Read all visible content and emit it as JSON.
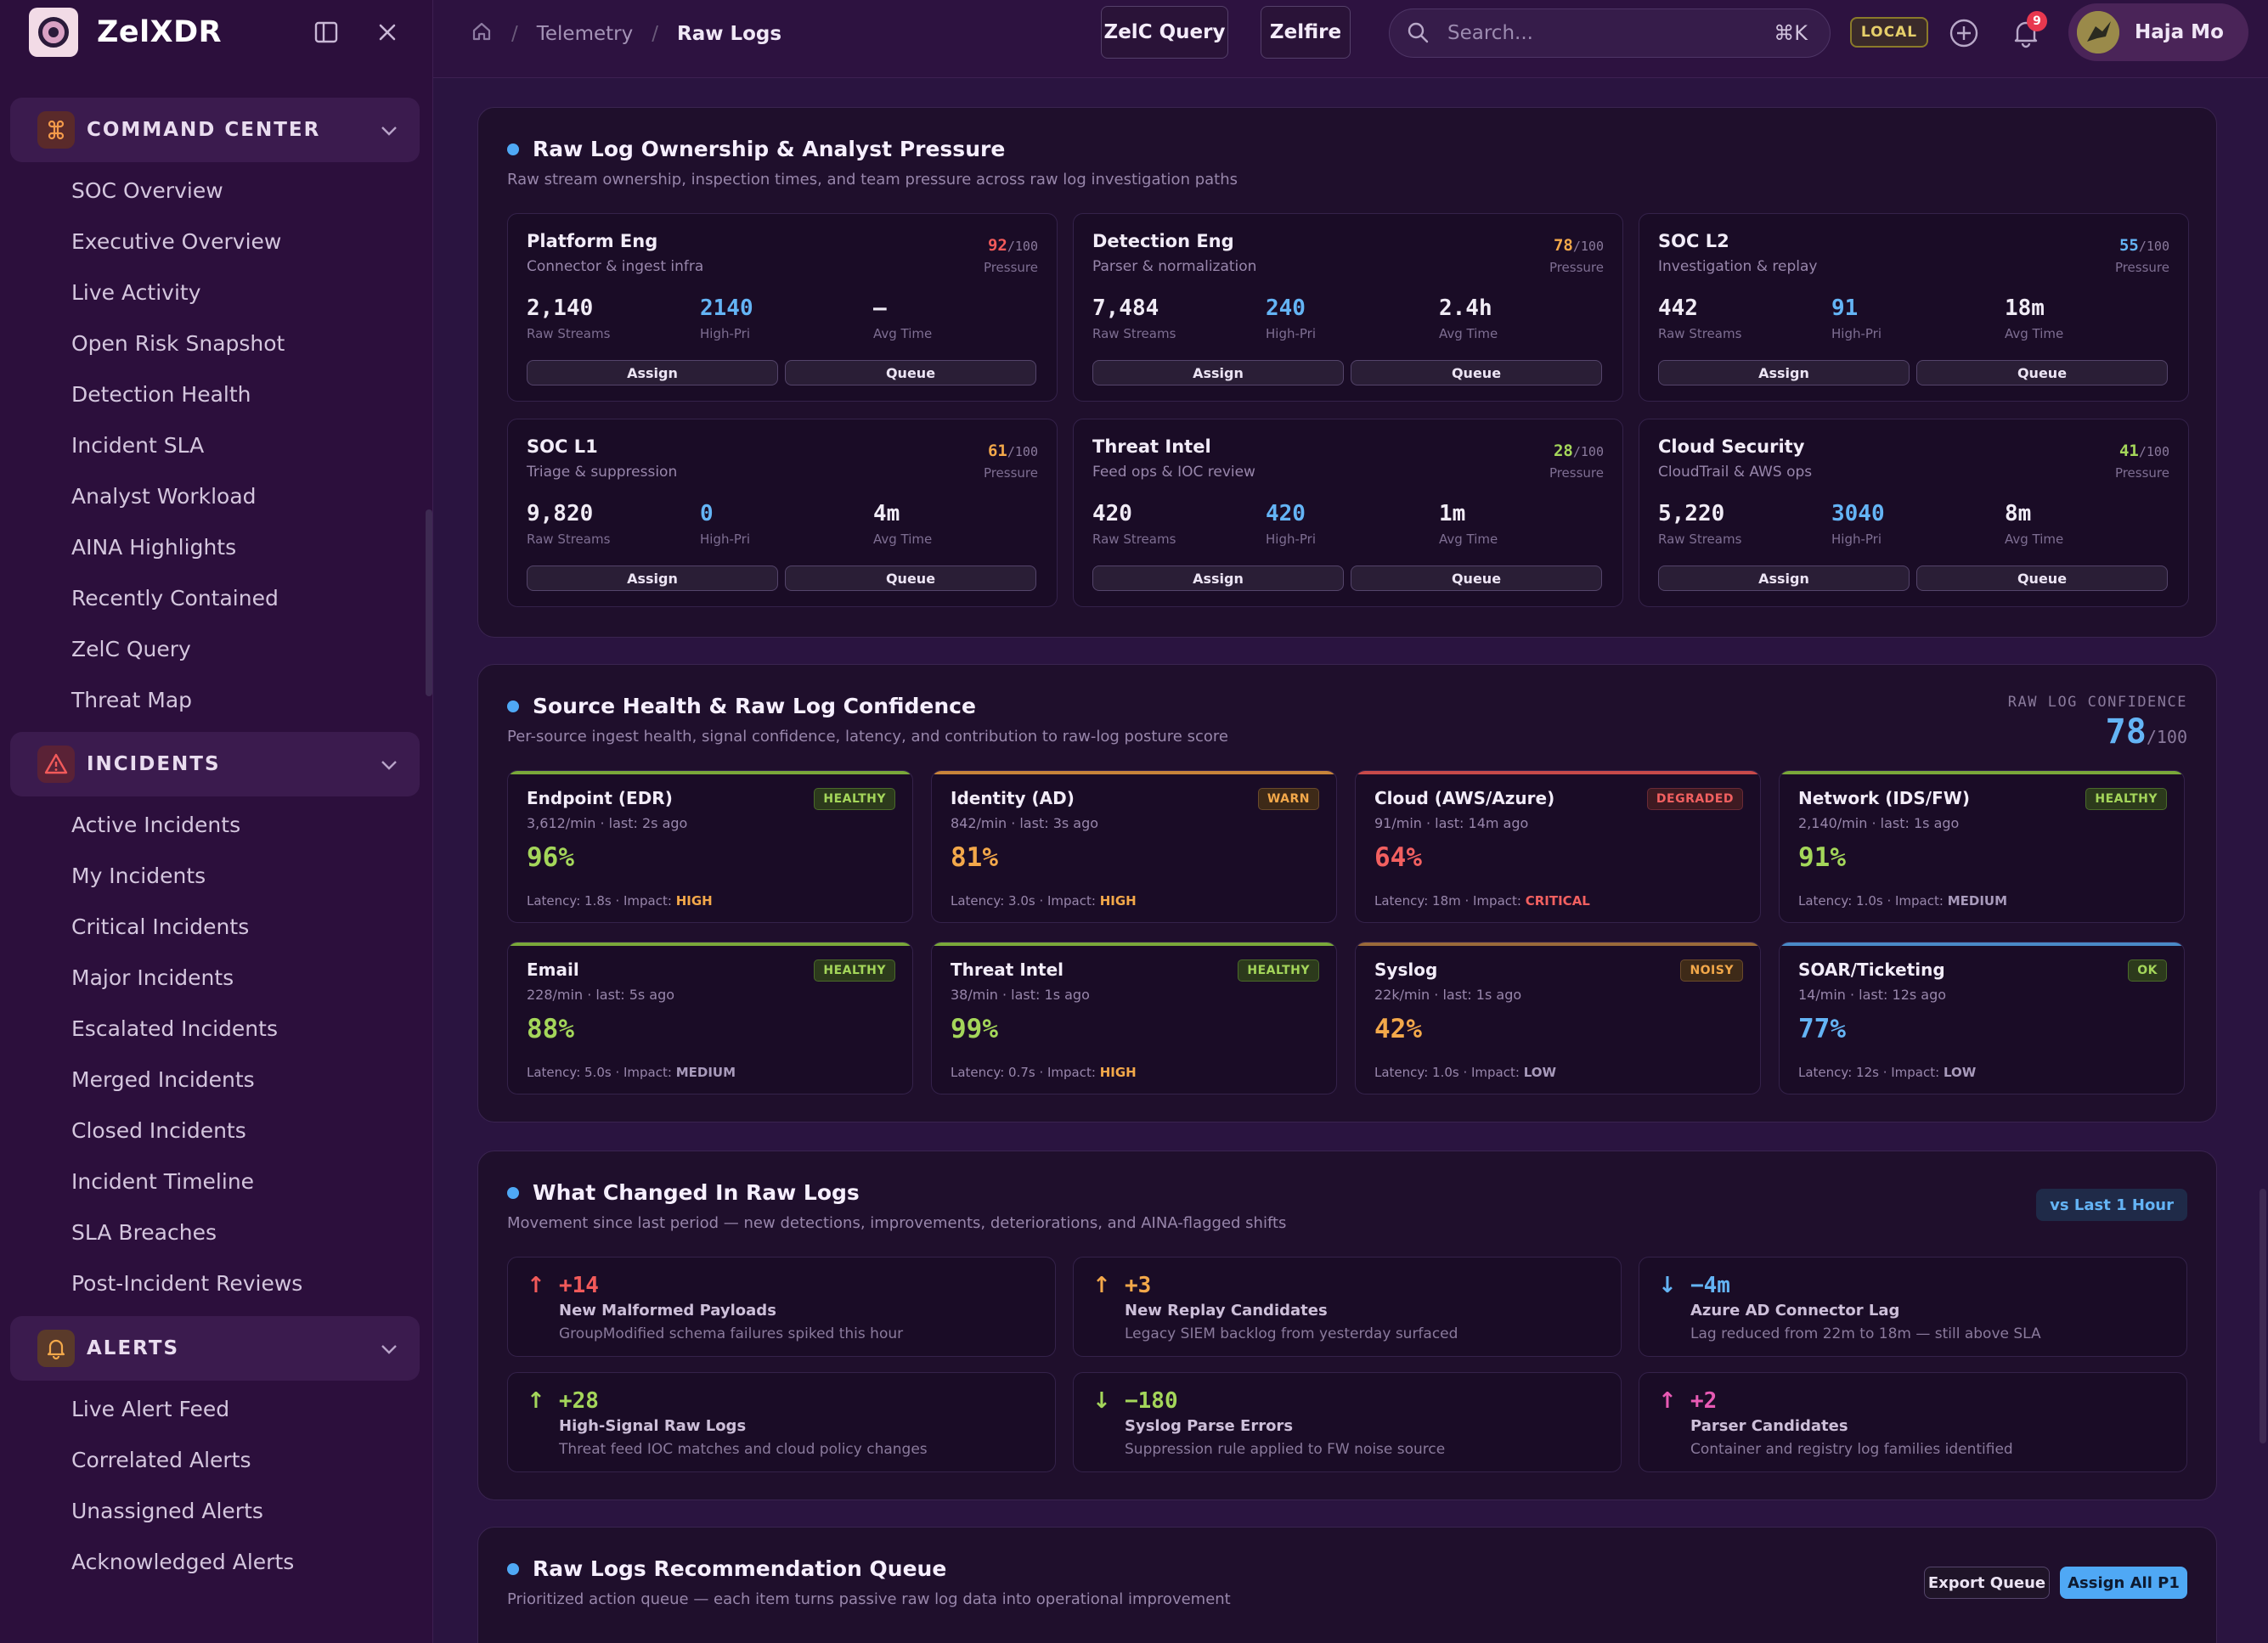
{
  "app": {
    "name": "ZelXDR"
  },
  "sidebar": {
    "groups": [
      {
        "label": "COMMAND CENTER",
        "items": [
          "SOC Overview",
          "Executive Overview",
          "Live Activity",
          "Open Risk Snapshot",
          "Detection Health",
          "Incident SLA",
          "Analyst Workload",
          "AINA Highlights",
          "Recently Contained",
          "ZelC Query",
          "Threat Map"
        ]
      },
      {
        "label": "INCIDENTS",
        "items": [
          "Active Incidents",
          "My Incidents",
          "Critical Incidents",
          "Major Incidents",
          "Escalated Incidents",
          "Merged Incidents",
          "Closed Incidents",
          "Incident Timeline",
          "SLA Breaches",
          "Post-Incident Reviews"
        ]
      },
      {
        "label": "ALERTS",
        "items": [
          "Live Alert Feed",
          "Correlated Alerts",
          "Unassigned Alerts",
          "Acknowledged Alerts"
        ]
      }
    ]
  },
  "header": {
    "breadcrumb": [
      "Telemetry",
      "Raw Logs"
    ],
    "btn_query": "ZelC Query",
    "btn_zelfire": "Zelfire",
    "search_placeholder": "Search...",
    "shortcut": "⌘K",
    "env": "LOCAL",
    "notif_count": "9",
    "user": "Haja Mo"
  },
  "ownership": {
    "title": "Raw Log Ownership & Analyst Pressure",
    "subtitle": "Raw stream ownership, inspection times, and team pressure across raw log investigation paths",
    "pressure_label": "Pressure",
    "denominator": "/100",
    "labels": {
      "streams": "Raw Streams",
      "highpri": "High-Pri",
      "avg": "Avg Time",
      "assign": "Assign",
      "queue": "Queue"
    },
    "teams": [
      {
        "name": "Platform Eng",
        "desc": "Connector & ingest infra",
        "pressure": "92",
        "color": "#f25a5a",
        "streams": "2,140",
        "highpri": "2140",
        "avg": "—"
      },
      {
        "name": "Detection Eng",
        "desc": "Parser & normalization",
        "pressure": "78",
        "color": "#f3a84a",
        "streams": "7,484",
        "highpri": "240",
        "avg": "2.4h"
      },
      {
        "name": "SOC L2",
        "desc": "Investigation & replay",
        "pressure": "55",
        "color": "#64b4f5",
        "streams": "442",
        "highpri": "91",
        "avg": "18m"
      },
      {
        "name": "SOC L1",
        "desc": "Triage & suppression",
        "pressure": "61",
        "color": "#f3a84a",
        "streams": "9,820",
        "highpri": "0",
        "avg": "4m"
      },
      {
        "name": "Threat Intel",
        "desc": "Feed ops & IOC review",
        "pressure": "28",
        "color": "#a4d65a",
        "streams": "420",
        "highpri": "420",
        "avg": "1m"
      },
      {
        "name": "Cloud Security",
        "desc": "CloudTrail & AWS ops",
        "pressure": "41",
        "color": "#a4d65a",
        "streams": "5,220",
        "highpri": "3040",
        "avg": "8m"
      }
    ]
  },
  "health": {
    "title": "Source Health & Raw Log Confidence",
    "subtitle": "Per-source ingest health, signal confidence, latency, and contribution to raw-log posture score",
    "confidence_label": "RAW LOG CONFIDENCE",
    "confidence_value": "78",
    "confidence_den": "/100",
    "sources": [
      {
        "name": "Endpoint (EDR)",
        "rate": "3,612/min · last: 2s ago",
        "pct": "96%",
        "latency": "Latency: 1.8s · Impact: ",
        "impact": "HIGH",
        "badge": "HEALTHY",
        "cls": "b-healthy",
        "pctColor": "#a4d65a",
        "impColor": "#f3a84a",
        "bar": "#7aa83a"
      },
      {
        "name": "Identity (AD)",
        "rate": "842/min · last: 3s ago",
        "pct": "81%",
        "latency": "Latency: 3.0s · Impact: ",
        "impact": "HIGH",
        "badge": "WARN",
        "cls": "b-warn",
        "pctColor": "#f3a84a",
        "impColor": "#f3a84a",
        "bar": "#c8843a"
      },
      {
        "name": "Cloud (AWS/Azure)",
        "rate": "91/min · last: 14m ago",
        "pct": "64%",
        "latency": "Latency: 18m · Impact: ",
        "impact": "CRITICAL",
        "badge": "DEGRADED",
        "cls": "b-degraded",
        "pctColor": "#f26060",
        "impColor": "#f26060",
        "bar": "#c84a4a"
      },
      {
        "name": "Network (IDS/FW)",
        "rate": "2,140/min · last: 1s ago",
        "pct": "91%",
        "latency": "Latency: 1.0s · Impact: ",
        "impact": "MEDIUM",
        "badge": "HEALTHY",
        "cls": "b-healthy",
        "pctColor": "#a4d65a",
        "impColor": "#a89abb",
        "bar": "#7aa83a"
      },
      {
        "name": "Email",
        "rate": "228/min · last: 5s ago",
        "pct": "88%",
        "latency": "Latency: 5.0s · Impact: ",
        "impact": "MEDIUM",
        "badge": "HEALTHY",
        "cls": "b-healthy",
        "pctColor": "#a4d65a",
        "impColor": "#a89abb",
        "bar": "#7aa83a"
      },
      {
        "name": "Threat Intel",
        "rate": "38/min · last: 1s ago",
        "pct": "99%",
        "latency": "Latency: 0.7s · Impact: ",
        "impact": "HIGH",
        "badge": "HEALTHY",
        "cls": "b-healthy",
        "pctColor": "#a4d65a",
        "impColor": "#f3a84a",
        "bar": "#7aa83a"
      },
      {
        "name": "Syslog",
        "rate": "22k/min · last: 1s ago",
        "pct": "42%",
        "latency": "Latency: 1.0s · Impact: ",
        "impact": "LOW",
        "badge": "NOISY",
        "cls": "b-noisy",
        "pctColor": "#f3a84a",
        "impColor": "#a89abb",
        "bar": "#9a6a3a"
      },
      {
        "name": "SOAR/Ticketing",
        "rate": "14/min · last: 12s ago",
        "pct": "77%",
        "latency": "Latency: 12s · Impact: ",
        "impact": "LOW",
        "badge": "OK",
        "cls": "b-ok",
        "pctColor": "#64b4f5",
        "impColor": "#a89abb",
        "bar": "#4a8ac8"
      }
    ]
  },
  "changes": {
    "title": "What Changed In Raw Logs",
    "subtitle": "Movement since last period — new detections, improvements, deteriorations, and AINA-flagged shifts",
    "pill": "vs Last 1 Hour",
    "items": [
      {
        "arrow": "↑",
        "value": "+14",
        "title": "New Malformed Payloads",
        "desc": "GroupModified schema failures spiked this hour",
        "color": "#f25a5a"
      },
      {
        "arrow": "↑",
        "value": "+3",
        "title": "New Replay Candidates",
        "desc": "Legacy SIEM backlog from yesterday surfaced",
        "color": "#f3a84a"
      },
      {
        "arrow": "↓",
        "value": "−4m",
        "title": "Azure AD Connector Lag",
        "desc": "Lag reduced from 22m to 18m — still above SLA",
        "color": "#64b4f5"
      },
      {
        "arrow": "↑",
        "value": "+28",
        "title": "High-Signal Raw Logs",
        "desc": "Threat feed IOC matches and cloud policy changes",
        "color": "#a4d65a"
      },
      {
        "arrow": "↓",
        "value": "−180",
        "title": "Syslog Parse Errors",
        "desc": "Suppression rule applied to FW noise source",
        "color": "#a4d65a"
      },
      {
        "arrow": "↑",
        "value": "+2",
        "title": "Parser Candidates",
        "desc": "Container and registry log families identified",
        "color": "#e85ab4"
      }
    ]
  },
  "queue": {
    "title": "Raw Logs Recommendation Queue",
    "subtitle": "Prioritized action queue — each item turns passive raw log data into operational improvement",
    "export": "Export Queue",
    "assign_all": "Assign All P1"
  }
}
